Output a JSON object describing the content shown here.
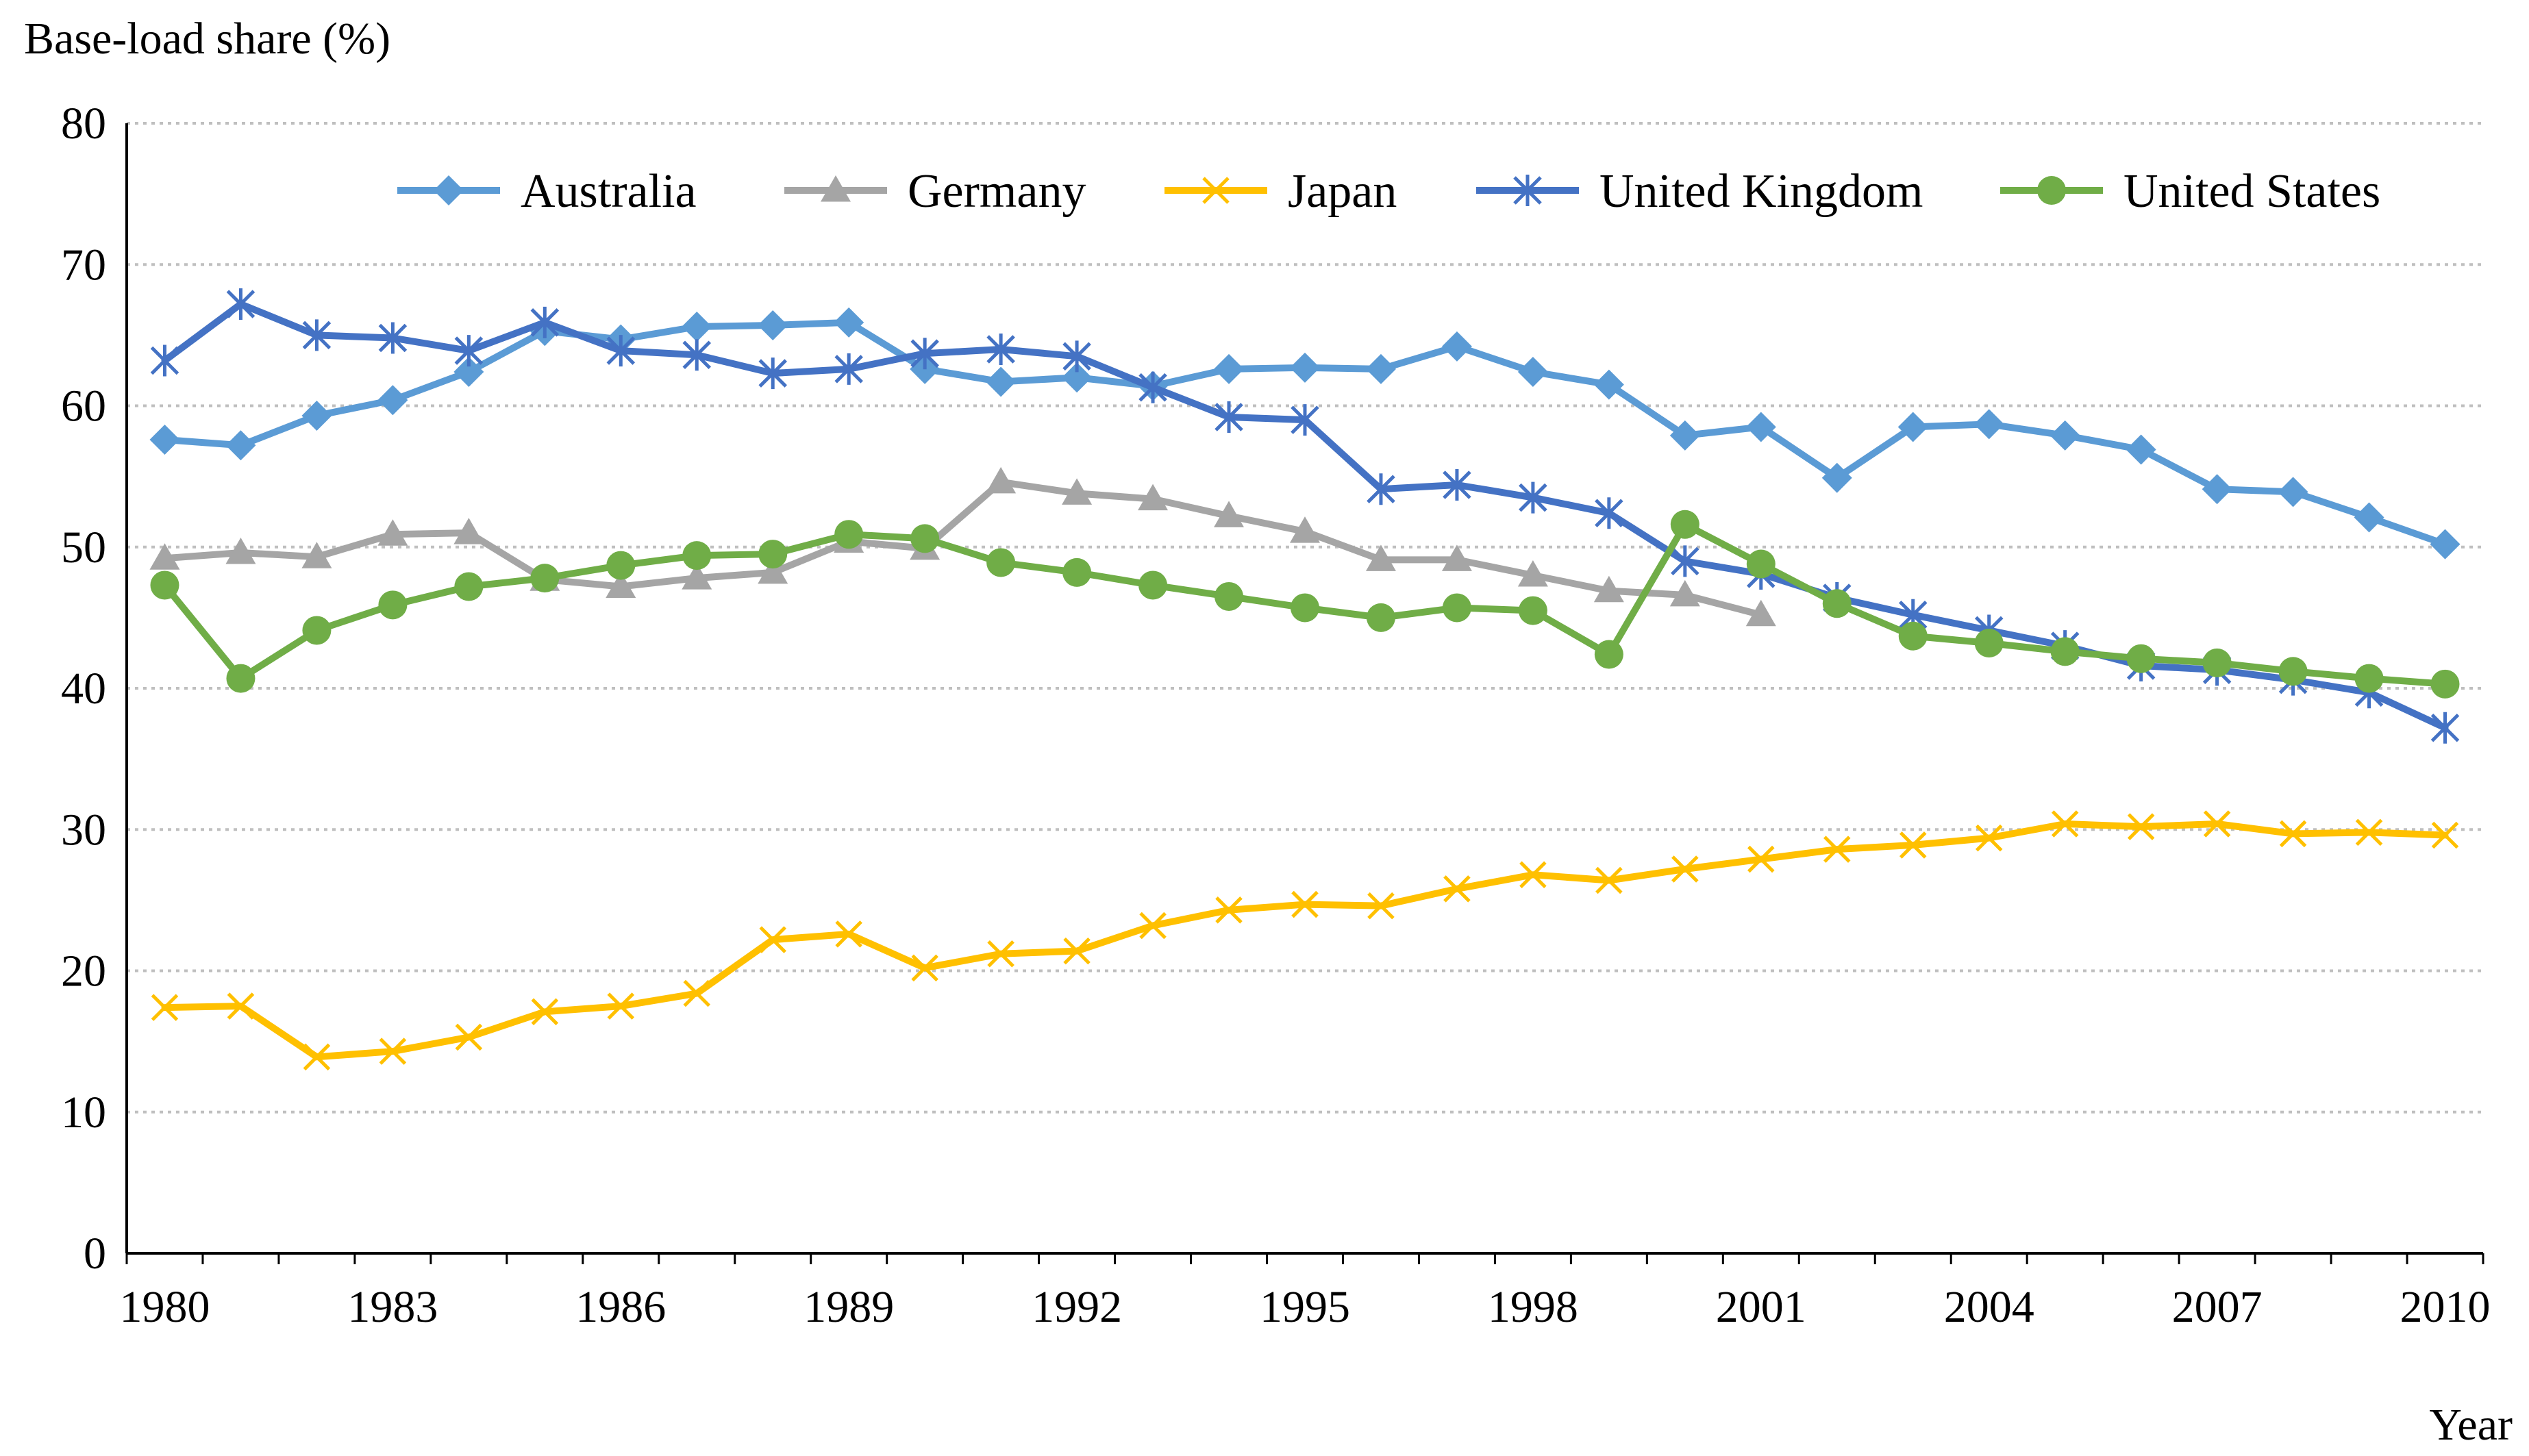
{
  "chart_data": {
    "type": "line",
    "ylabel": "Base-load share (%)",
    "xlabel": "Year",
    "ylim": [
      0,
      80
    ],
    "y_ticks": [
      0,
      10,
      20,
      30,
      40,
      50,
      60,
      70,
      80
    ],
    "x_ticks": [
      1980,
      1983,
      1986,
      1989,
      1992,
      1995,
      1998,
      2001,
      2004,
      2007,
      2010
    ],
    "x": [
      1980,
      1981,
      1982,
      1983,
      1984,
      1985,
      1986,
      1987,
      1988,
      1989,
      1990,
      1991,
      1992,
      1993,
      1994,
      1995,
      1996,
      1997,
      1998,
      1999,
      2000,
      2001,
      2002,
      2003,
      2004,
      2005,
      2006,
      2007,
      2008,
      2009,
      2010
    ],
    "grid": "horizontal dotted",
    "legend_position": "top",
    "series": [
      {
        "name": "Australia",
        "color": "#5B9BD5",
        "marker": "diamond",
        "values": [
          57.6,
          57.2,
          59.3,
          60.4,
          62.4,
          65.3,
          64.7,
          65.6,
          65.7,
          65.9,
          62.6,
          61.7,
          62.0,
          61.4,
          62.6,
          62.7,
          62.6,
          64.2,
          62.4,
          61.5,
          57.9,
          58.5,
          54.9,
          58.5,
          58.7,
          57.9,
          56.9,
          54.1,
          53.9,
          52.1,
          50.2
        ]
      },
      {
        "name": "Germany",
        "color": "#A5A5A5",
        "marker": "triangle",
        "values": [
          49.2,
          49.6,
          49.3,
          50.9,
          51.0,
          47.7,
          47.2,
          47.8,
          48.2,
          50.4,
          49.9,
          54.6,
          53.8,
          53.4,
          52.2,
          51.1,
          49.1,
          49.1,
          48.0,
          46.9,
          46.6,
          45.2,
          null,
          null,
          null,
          null,
          null,
          null,
          null,
          null,
          null
        ]
      },
      {
        "name": "Japan",
        "color": "#FFC000",
        "marker": "x",
        "values": [
          17.4,
          17.5,
          13.9,
          14.3,
          15.3,
          17.1,
          17.5,
          18.4,
          22.2,
          22.6,
          20.2,
          21.2,
          21.4,
          23.2,
          24.3,
          24.7,
          24.6,
          25.8,
          26.8,
          26.4,
          27.2,
          27.9,
          28.6,
          28.9,
          29.4,
          30.4,
          30.2,
          30.4,
          29.7,
          29.8,
          29.6
        ]
      },
      {
        "name": "United Kingdom",
        "color": "#4472C4",
        "marker": "asterisk",
        "values": [
          63.2,
          67.2,
          65.0,
          64.8,
          63.9,
          65.9,
          63.9,
          63.6,
          62.3,
          62.6,
          63.7,
          64.0,
          63.5,
          61.3,
          59.2,
          59.0,
          54.1,
          54.4,
          53.5,
          52.4,
          49.0,
          48.1,
          46.4,
          45.2,
          44.1,
          43.0,
          41.6,
          41.3,
          40.6,
          39.7,
          37.2
        ]
      },
      {
        "name": "United States",
        "color": "#70AD47",
        "marker": "circle",
        "values": [
          47.3,
          40.7,
          44.1,
          45.9,
          47.2,
          47.8,
          48.7,
          49.4,
          49.5,
          50.9,
          50.6,
          48.9,
          48.2,
          47.3,
          46.5,
          45.7,
          45.0,
          45.7,
          45.5,
          42.4,
          51.6,
          48.8,
          46.0,
          43.7,
          43.2,
          42.6,
          42.1,
          41.8,
          41.2,
          40.7,
          40.3
        ]
      }
    ]
  }
}
